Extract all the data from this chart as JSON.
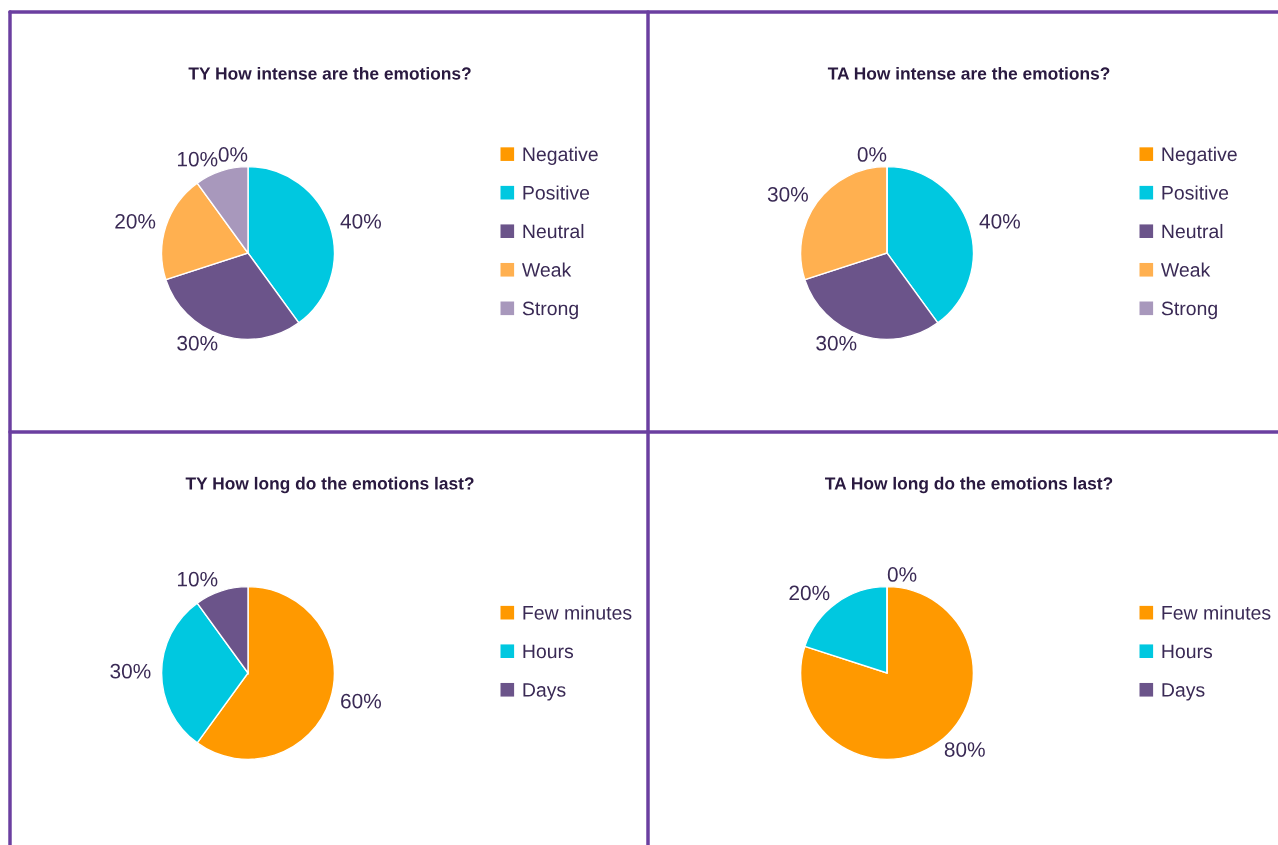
{
  "chart_data": [
    {
      "type": "pie",
      "title": "TY How intense are the emotions?",
      "categories": [
        "Negative",
        "Positive",
        "Neutral",
        "Weak",
        "Strong"
      ],
      "values": [
        0,
        40,
        30,
        20,
        10
      ],
      "colors": [
        "#ff9900",
        "#00c8e0",
        "#6b548a",
        "#ffb050",
        "#a898bc"
      ],
      "value_labels": [
        "0%",
        "40%",
        "30%",
        "20%",
        "10%"
      ],
      "legend": "right"
    },
    {
      "type": "pie",
      "title": "TA How intense are the emotions?",
      "categories": [
        "Negative",
        "Positive",
        "Neutral",
        "Weak",
        "Strong"
      ],
      "values": [
        0,
        40,
        30,
        30,
        0
      ],
      "colors": [
        "#ff9900",
        "#00c8e0",
        "#6b548a",
        "#ffb050",
        "#a898bc"
      ],
      "value_labels": [
        "0%",
        "40%",
        "30%",
        "30%",
        null
      ],
      "legend": "right"
    },
    {
      "type": "pie",
      "title": "TY How long do the emotions last?",
      "categories": [
        "Few minutes",
        "Hours",
        "Days"
      ],
      "values": [
        60,
        30,
        10
      ],
      "colors": [
        "#ff9900",
        "#00c8e0",
        "#6b548a"
      ],
      "value_labels": [
        "60%",
        "30%",
        "10%"
      ],
      "legend": "right"
    },
    {
      "type": "pie",
      "title": "TA How long do the emotions last?",
      "categories": [
        "Few minutes",
        "Hours",
        "Days"
      ],
      "values": [
        80,
        20,
        0
      ],
      "colors": [
        "#ff9900",
        "#00c8e0",
        "#6b548a"
      ],
      "value_labels": [
        "80%",
        "20%",
        "0%"
      ],
      "legend": "right"
    }
  ]
}
